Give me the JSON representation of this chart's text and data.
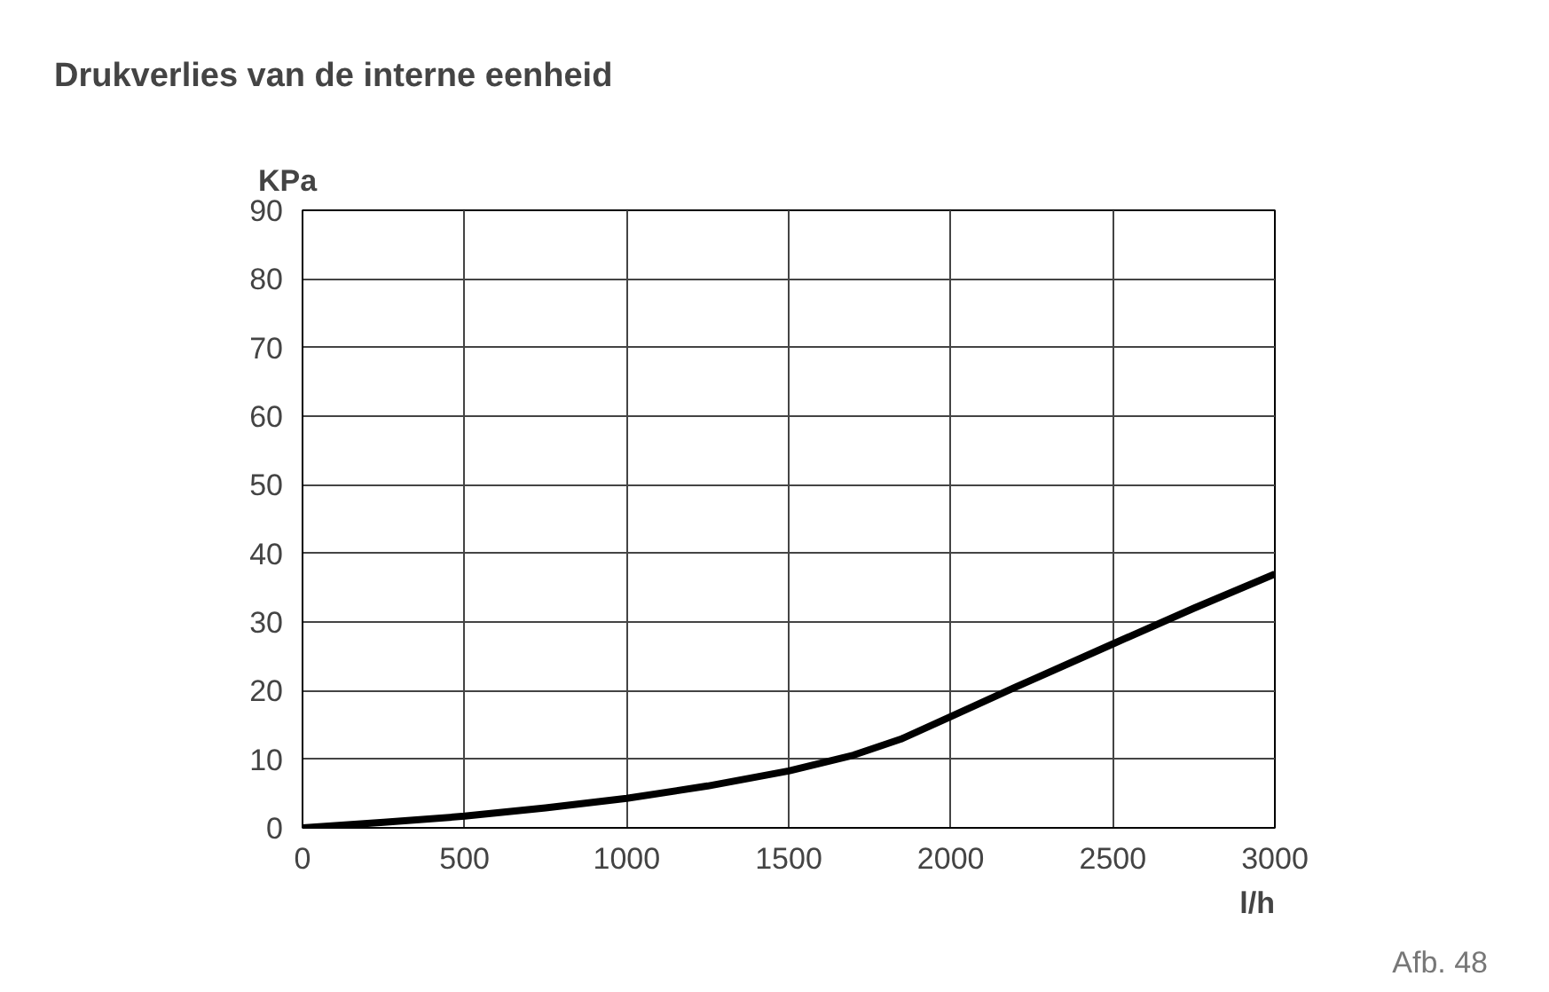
{
  "chart_data": {
    "type": "line",
    "title": "Drukverlies van de interne eenheid",
    "xlabel": "l/h",
    "ylabel": "KPa",
    "x": [
      0,
      250,
      500,
      750,
      1000,
      1250,
      1500,
      1700,
      1850,
      2000,
      2200,
      2500,
      2750,
      3000
    ],
    "series": [
      {
        "color": "#000000",
        "values": [
          0,
          0.8,
          1.7,
          2.9,
          4.3,
          6.1,
          8.3,
          10.6,
          13.0,
          16.2,
          20.5,
          26.8,
          32,
          37
        ]
      }
    ],
    "xlim": [
      0,
      3000
    ],
    "ylim": [
      0,
      90
    ],
    "xticks": [
      0,
      500,
      1000,
      1500,
      2000,
      2500,
      3000
    ],
    "yticks": [
      0,
      10,
      20,
      30,
      40,
      50,
      60,
      70,
      80,
      90
    ],
    "grid": true,
    "line_style": "solid",
    "marker": "none",
    "annotations": [
      "Afb. 48"
    ]
  }
}
